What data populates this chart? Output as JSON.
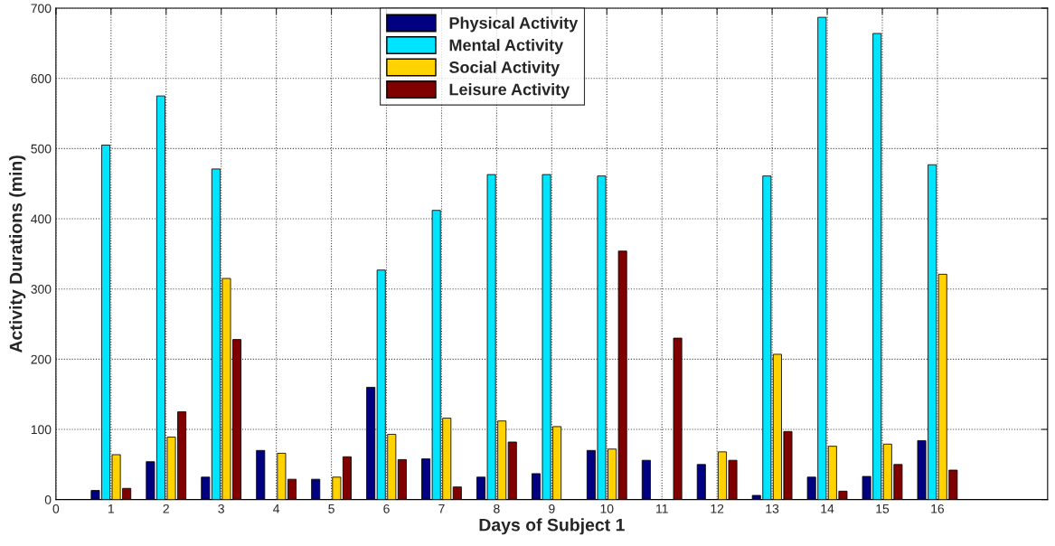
{
  "chart_data": {
    "type": "bar",
    "xlabel": "Days of Subject 1",
    "ylabel": "Activity Durations (min)",
    "x": [
      1,
      2,
      3,
      4,
      5,
      6,
      7,
      8,
      9,
      10,
      11,
      12,
      13,
      14,
      15,
      16
    ],
    "series": [
      {
        "name": "Physical Activity",
        "color": "#000080",
        "values": [
          13,
          54,
          32,
          70,
          29,
          160,
          58,
          32,
          37,
          70,
          56,
          50,
          6,
          32,
          33,
          84
        ]
      },
      {
        "name": "Mental Activity",
        "color": "#00e5ff",
        "values": [
          505,
          575,
          471,
          null,
          null,
          327,
          412,
          463,
          463,
          461,
          null,
          null,
          461,
          687,
          664,
          477
        ]
      },
      {
        "name": "Social Activity",
        "color": "#ffd200",
        "values": [
          64,
          89,
          315,
          66,
          32,
          93,
          116,
          112,
          104,
          72,
          null,
          68,
          207,
          76,
          79,
          321
        ]
      },
      {
        "name": "Leisure Activity",
        "color": "#800000",
        "values": [
          16,
          125,
          228,
          29,
          61,
          57,
          18,
          82,
          null,
          354,
          230,
          56,
          97,
          12,
          50,
          42
        ]
      }
    ],
    "xlim": [
      0,
      18
    ],
    "xticks": [
      0,
      1,
      2,
      3,
      4,
      5,
      6,
      7,
      8,
      9,
      10,
      11,
      12,
      13,
      14,
      15,
      16
    ],
    "ylim": [
      0,
      700
    ],
    "yticks": [
      0,
      100,
      200,
      300,
      400,
      500,
      600,
      700
    ],
    "grid": true,
    "legend": "top"
  }
}
